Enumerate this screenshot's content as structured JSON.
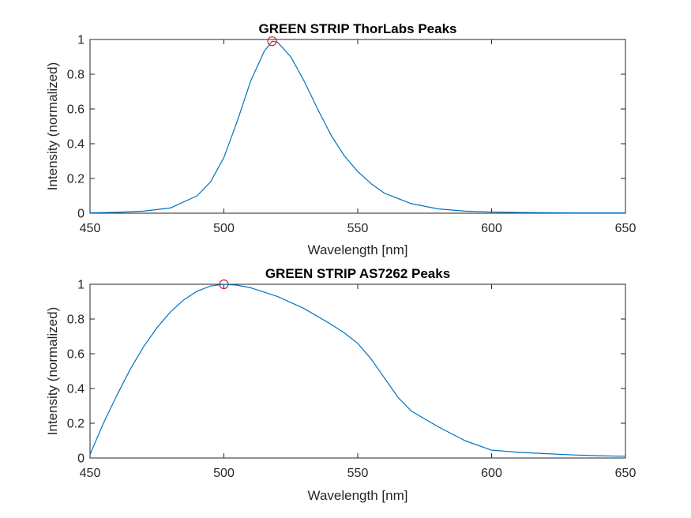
{
  "colors": {
    "series": "#0072BD",
    "peak_marker": "#E02020",
    "axes": "#262626",
    "background": "#FFFFFF"
  },
  "chart_data": [
    {
      "type": "line",
      "title": "GREEN STRIP ThorLabs Peaks",
      "xlabel": "Wavelength [nm]",
      "ylabel": "Intensity (normalized)",
      "xlim": [
        450,
        650
      ],
      "ylim": [
        0,
        1
      ],
      "xticks": [
        450,
        500,
        550,
        600,
        650
      ],
      "yticks": [
        0,
        0.2,
        0.4,
        0.6,
        0.8,
        1
      ],
      "xtick_labels": [
        "450",
        "500",
        "550",
        "600",
        "650"
      ],
      "ytick_labels": [
        "0",
        "0.2",
        "0.4",
        "0.6",
        "0.8",
        "1"
      ],
      "grid": false,
      "series": [
        {
          "x": [
            450,
            460,
            470,
            480,
            490,
            495,
            500,
            505,
            510,
            515,
            518,
            520,
            525,
            530,
            535,
            540,
            545,
            550,
            555,
            560,
            570,
            580,
            590,
            600,
            610,
            620,
            630,
            640,
            650
          ],
          "y": [
            0.002,
            0.005,
            0.012,
            0.03,
            0.1,
            0.18,
            0.32,
            0.53,
            0.76,
            0.93,
            0.99,
            0.985,
            0.9,
            0.76,
            0.6,
            0.45,
            0.33,
            0.24,
            0.17,
            0.115,
            0.055,
            0.025,
            0.012,
            0.007,
            0.004,
            0.003,
            0.002,
            0.002,
            0.002
          ]
        }
      ],
      "peaks": [
        {
          "x": 518,
          "y": 0.99
        }
      ]
    },
    {
      "type": "line",
      "title": "GREEN STRIP AS7262 Peaks",
      "xlabel": "Wavelength [nm]",
      "ylabel": "Intensity (normalized)",
      "xlim": [
        450,
        650
      ],
      "ylim": [
        0,
        1
      ],
      "xticks": [
        450,
        500,
        550,
        600,
        650
      ],
      "yticks": [
        0,
        0.2,
        0.4,
        0.6,
        0.8,
        1
      ],
      "xtick_labels": [
        "450",
        "500",
        "550",
        "600",
        "650"
      ],
      "ytick_labels": [
        "0",
        "0.2",
        "0.4",
        "0.6",
        "0.8",
        "1"
      ],
      "grid": false,
      "series": [
        {
          "x": [
            450,
            455,
            460,
            465,
            470,
            475,
            480,
            485,
            490,
            495,
            500,
            505,
            510,
            520,
            530,
            540,
            545,
            550,
            555,
            560,
            565,
            570,
            580,
            590,
            600,
            610,
            620,
            630,
            640,
            650
          ],
          "y": [
            0.02,
            0.2,
            0.36,
            0.51,
            0.64,
            0.75,
            0.84,
            0.91,
            0.96,
            0.99,
            1.0,
            0.995,
            0.98,
            0.93,
            0.86,
            0.77,
            0.72,
            0.66,
            0.57,
            0.46,
            0.35,
            0.27,
            0.18,
            0.1,
            0.045,
            0.033,
            0.025,
            0.018,
            0.013,
            0.01
          ]
        }
      ],
      "peaks": [
        {
          "x": 500,
          "y": 1.0
        }
      ]
    }
  ]
}
